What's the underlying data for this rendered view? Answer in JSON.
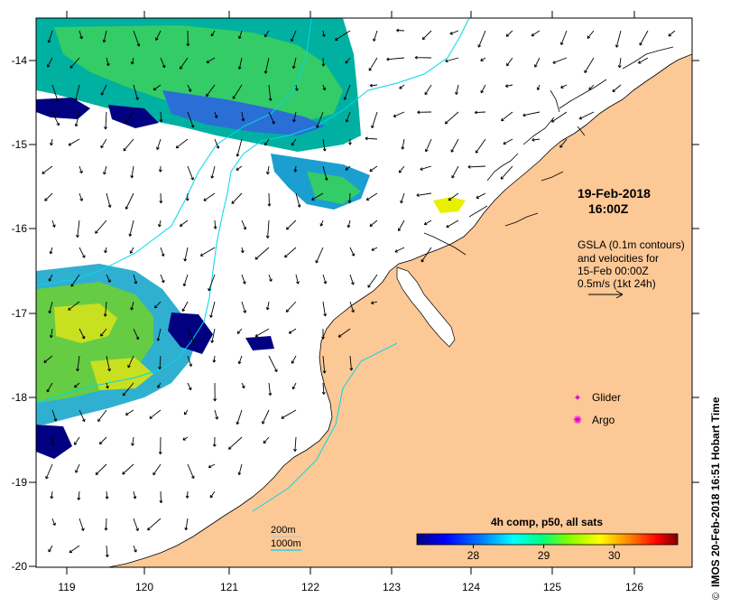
{
  "map": {
    "lon_ticks": [
      "119",
      "120",
      "121",
      "122",
      "123",
      "124",
      "125",
      "126"
    ],
    "lat_ticks": [
      "-14",
      "-15",
      "-16",
      "-17",
      "-18",
      "-19",
      "-20"
    ],
    "lon_range": [
      118.6,
      126.7
    ],
    "lat_range": [
      -20.1,
      -13.5
    ],
    "colors": {
      "land": "#fcc896",
      "ocean": "#ffffff",
      "contour": "#00d8e8",
      "glider": "#e000e0",
      "argo": "#e000e0"
    }
  },
  "annotations": {
    "date": "19-Feb-2018",
    "time": "16:00Z",
    "gsla_line1": "GSLA (0.1m contours)",
    "gsla_line2": "and velocities for",
    "gsla_line3": "15-Feb 00:00Z",
    "gsla_line4": "0.5m/s (1kt 24h)"
  },
  "legend": {
    "glider": "Glider",
    "argo": "Argo",
    "isobath_200": "200m",
    "isobath_1000": "1000m"
  },
  "colorbar": {
    "title": "4h comp, p50, all sats",
    "ticks": [
      "28",
      "29",
      "30"
    ],
    "tick_values": [
      28,
      29,
      30
    ],
    "range": [
      27.2,
      30.9
    ],
    "colors": [
      "#00007f",
      "#0000ff",
      "#007fff",
      "#00ffff",
      "#00ff7f",
      "#7fff00",
      "#ffff00",
      "#ff7f00",
      "#ff0000",
      "#7f0000"
    ]
  },
  "credit": "IMOS 20-Feb-2018 16:51 Hobart Time"
}
